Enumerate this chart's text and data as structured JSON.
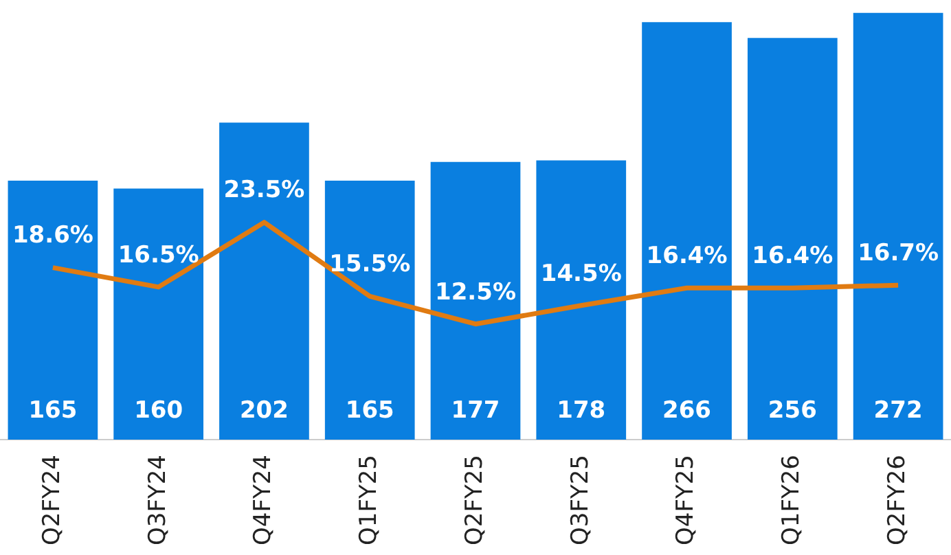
{
  "chart_data": {
    "type": "bar",
    "categories": [
      "Q2FY24",
      "Q3FY24",
      "Q4FY24",
      "Q1FY25",
      "Q2FY25",
      "Q3FY25",
      "Q4FY25",
      "Q1FY26",
      "Q2FY26"
    ],
    "series": [
      {
        "color": "#0a7fe0",
        "values": [
          165,
          160,
          202,
          165,
          177,
          178,
          266,
          256,
          272
        ],
        "value_labels": [
          "165",
          "160",
          "202",
          "165",
          "177",
          "178",
          "266",
          "256",
          "272"
        ]
      },
      {
        "type": "line",
        "axis": "y2",
        "color": "#e07b12",
        "values": [
          18.6,
          16.5,
          23.5,
          15.5,
          12.5,
          14.5,
          16.4,
          16.4,
          16.7
        ],
        "value_labels": [
          "18.6%",
          "16.5%",
          "23.5%",
          "15.5%",
          "12.5%",
          "14.5%",
          "16.4%",
          "16.4%",
          "16.7%"
        ]
      }
    ],
    "tick_labels": "x",
    "grid": false,
    "legend": false,
    "marker": "none"
  }
}
